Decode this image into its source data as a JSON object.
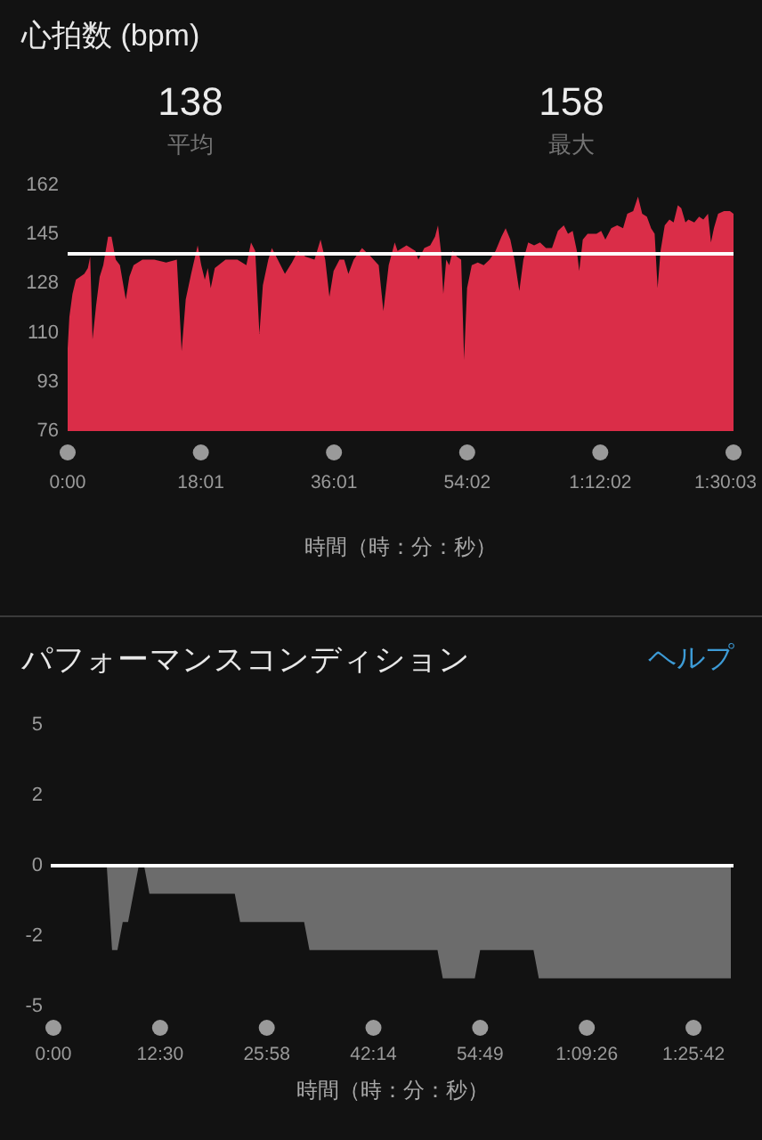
{
  "chart_data": [
    {
      "type": "area",
      "title": "心拍数 (bpm)",
      "xlabel": "時間（時：分：秒）",
      "color": "#da2d48",
      "x": [
        0,
        14,
        39,
        67,
        101,
        135,
        164,
        183,
        202,
        231,
        260,
        289,
        328,
        356,
        390,
        424,
        472,
        501,
        535,
        607,
        703,
        799,
        886,
        925,
        958,
        1002,
        1055,
        1084,
        1113,
        1137,
        1161,
        1194,
        1281,
        1377,
        1450,
        1488,
        1522,
        1556,
        1584,
        1628,
        1657,
        1705,
        1763,
        1820,
        1869,
        1931,
        2003,
        2052,
        2090,
        2124,
        2158,
        2206,
        2244,
        2278,
        2321,
        2389,
        2461,
        2524,
        2562,
        2605,
        2654,
        2677,
        2750,
        2822,
        2846,
        2894,
        2942,
        2981,
        3005,
        3029,
        3048,
        3072,
        3096,
        3125,
        3159,
        3193,
        3217,
        3241,
        3279,
        3328,
        3376,
        3424,
        3472,
        3520,
        3554,
        3592,
        3626,
        3665,
        3698,
        3737,
        3785,
        3833,
        3881,
        3930,
        3978,
        4026,
        4060,
        4098,
        4132,
        4151,
        4180,
        4219,
        4291,
        4329,
        4363,
        4411,
        4459,
        4507,
        4541,
        4589,
        4628,
        4662,
        4700,
        4734,
        4763,
        4787,
        4811,
        4845,
        4883,
        4917,
        4951,
        4979,
        5013,
        5037,
        5085,
        5124,
        5158,
        5196,
        5220,
        5244,
        5278,
        5326,
        5374,
        5403
      ],
      "values": [
        105,
        116,
        124,
        129,
        130,
        131,
        133,
        137,
        108,
        120,
        130,
        134,
        144,
        144,
        136,
        134,
        122,
        130,
        134,
        136,
        136,
        135,
        136,
        104,
        122,
        131,
        141,
        134,
        129,
        133,
        126,
        133,
        136,
        136,
        134,
        142,
        139,
        110,
        127,
        136,
        140,
        136,
        131,
        135,
        139,
        137,
        136,
        143,
        136,
        123,
        132,
        136,
        136,
        131,
        136,
        140,
        137,
        134,
        118,
        134,
        142,
        139,
        141,
        139,
        136,
        140,
        141,
        144,
        148,
        139,
        124,
        136,
        134,
        139,
        137,
        136,
        101,
        126,
        134,
        135,
        134,
        136,
        139,
        144,
        147,
        143,
        136,
        125,
        136,
        142,
        141,
        142,
        140,
        140,
        146,
        148,
        145,
        146,
        139,
        132,
        143,
        145,
        145,
        146,
        143,
        147,
        148,
        147,
        152,
        153,
        158,
        152,
        151,
        147,
        145,
        126,
        139,
        148,
        150,
        149,
        155,
        154,
        149,
        150,
        149,
        151,
        150,
        152,
        142,
        147,
        152,
        153,
        153,
        152
      ],
      "xlim": [
        0,
        5403
      ],
      "xticks": [
        {
          "value": 0,
          "label": "0:00"
        },
        {
          "value": 1081,
          "label": "18:01"
        },
        {
          "value": 2161,
          "label": "36:01"
        },
        {
          "value": 3242,
          "label": "54:02"
        },
        {
          "value": 4322,
          "label": "1:12:02"
        },
        {
          "value": 5403,
          "label": "1:30:03"
        }
      ],
      "ylim": [
        76,
        162
      ],
      "yticks": [
        76,
        {
          "value": 93.2,
          "label": "93"
        },
        {
          "value": 110.4,
          "label": "110"
        },
        {
          "value": 127.6,
          "label": "128"
        },
        {
          "value": 144.8,
          "label": "145"
        },
        162
      ],
      "ref_lines": [
        {
          "axis": "y",
          "value": 138,
          "color": "#ffffff"
        }
      ],
      "annotations": [
        "138",
        "平均",
        "158",
        "最大"
      ]
    },
    {
      "type": "area",
      "title": "パフォーマンスコンディション",
      "xlabel": "時間（時：分：秒）",
      "color": "#6c6c6c",
      "categories": [
        "0:00",
        null,
        null,
        null,
        null,
        null,
        null,
        null,
        null,
        null,
        null,
        null,
        null,
        null,
        null,
        null,
        null,
        null,
        null,
        null,
        "12:30",
        null,
        null,
        null,
        null,
        null,
        null,
        null,
        null,
        null,
        null,
        null,
        null,
        null,
        null,
        null,
        null,
        null,
        null,
        null,
        "25:58",
        null,
        null,
        null,
        null,
        null,
        null,
        null,
        null,
        null,
        null,
        null,
        null,
        null,
        null,
        null,
        null,
        null,
        null,
        null,
        "42:14",
        null,
        null,
        null,
        null,
        null,
        null,
        null,
        null,
        null,
        null,
        null,
        null,
        null,
        null,
        null,
        null,
        null,
        null,
        null,
        "54:49",
        null,
        null,
        null,
        null,
        null,
        null,
        null,
        null,
        null,
        null,
        null,
        null,
        null,
        null,
        null,
        null,
        null,
        null,
        null,
        "1:09:26",
        null,
        null,
        null,
        null,
        null,
        null,
        null,
        null,
        null,
        null,
        null,
        null,
        null,
        null,
        null,
        null,
        null,
        null,
        null,
        "1:25:42",
        null,
        null,
        null,
        null,
        null,
        null,
        null
      ],
      "values": [
        0,
        0,
        0,
        0,
        0,
        0,
        0,
        0,
        0,
        0,
        0,
        -3,
        -3,
        -2,
        -2,
        -1,
        0,
        0,
        -1,
        -1,
        -1,
        -1,
        -1,
        -1,
        -1,
        -1,
        -1,
        -1,
        -1,
        -1,
        -1,
        -1,
        -1,
        -1,
        -1,
        -2,
        -2,
        -2,
        -2,
        -2,
        -2,
        -2,
        -2,
        -2,
        -2,
        -2,
        -2,
        -2,
        -3,
        -3,
        -3,
        -3,
        -3,
        -3,
        -3,
        -3,
        -3,
        -3,
        -3,
        -3,
        -3,
        -3,
        -3,
        -3,
        -3,
        -3,
        -3,
        -3,
        -3,
        -3,
        -3,
        -3,
        -3,
        -4,
        -4,
        -4,
        -4,
        -4,
        -4,
        -4,
        -3,
        -3,
        -3,
        -3,
        -3,
        -3,
        -3,
        -3,
        -3,
        -3,
        -3,
        -4,
        -4,
        -4,
        -4,
        -4,
        -4,
        -4,
        -4,
        -4,
        -4,
        -4,
        -4,
        -4,
        -4,
        -4,
        -4,
        -4,
        -4,
        -4,
        -4,
        -4,
        -4,
        -4,
        -4,
        -4,
        -4,
        -4,
        -4,
        -4,
        -4,
        -4,
        -4,
        -4,
        -4,
        -4,
        -4,
        -4
      ],
      "ylim": [
        -5,
        5
      ],
      "yticks": [
        5,
        {
          "value": 2.5,
          "label": "2"
        },
        0,
        {
          "value": -2.5,
          "label": "-2"
        },
        -5
      ],
      "ref_lines": [
        {
          "axis": "y",
          "value": 0,
          "color": "#ffffff"
        }
      ],
      "annotations": [
        "ヘルプ"
      ]
    }
  ]
}
